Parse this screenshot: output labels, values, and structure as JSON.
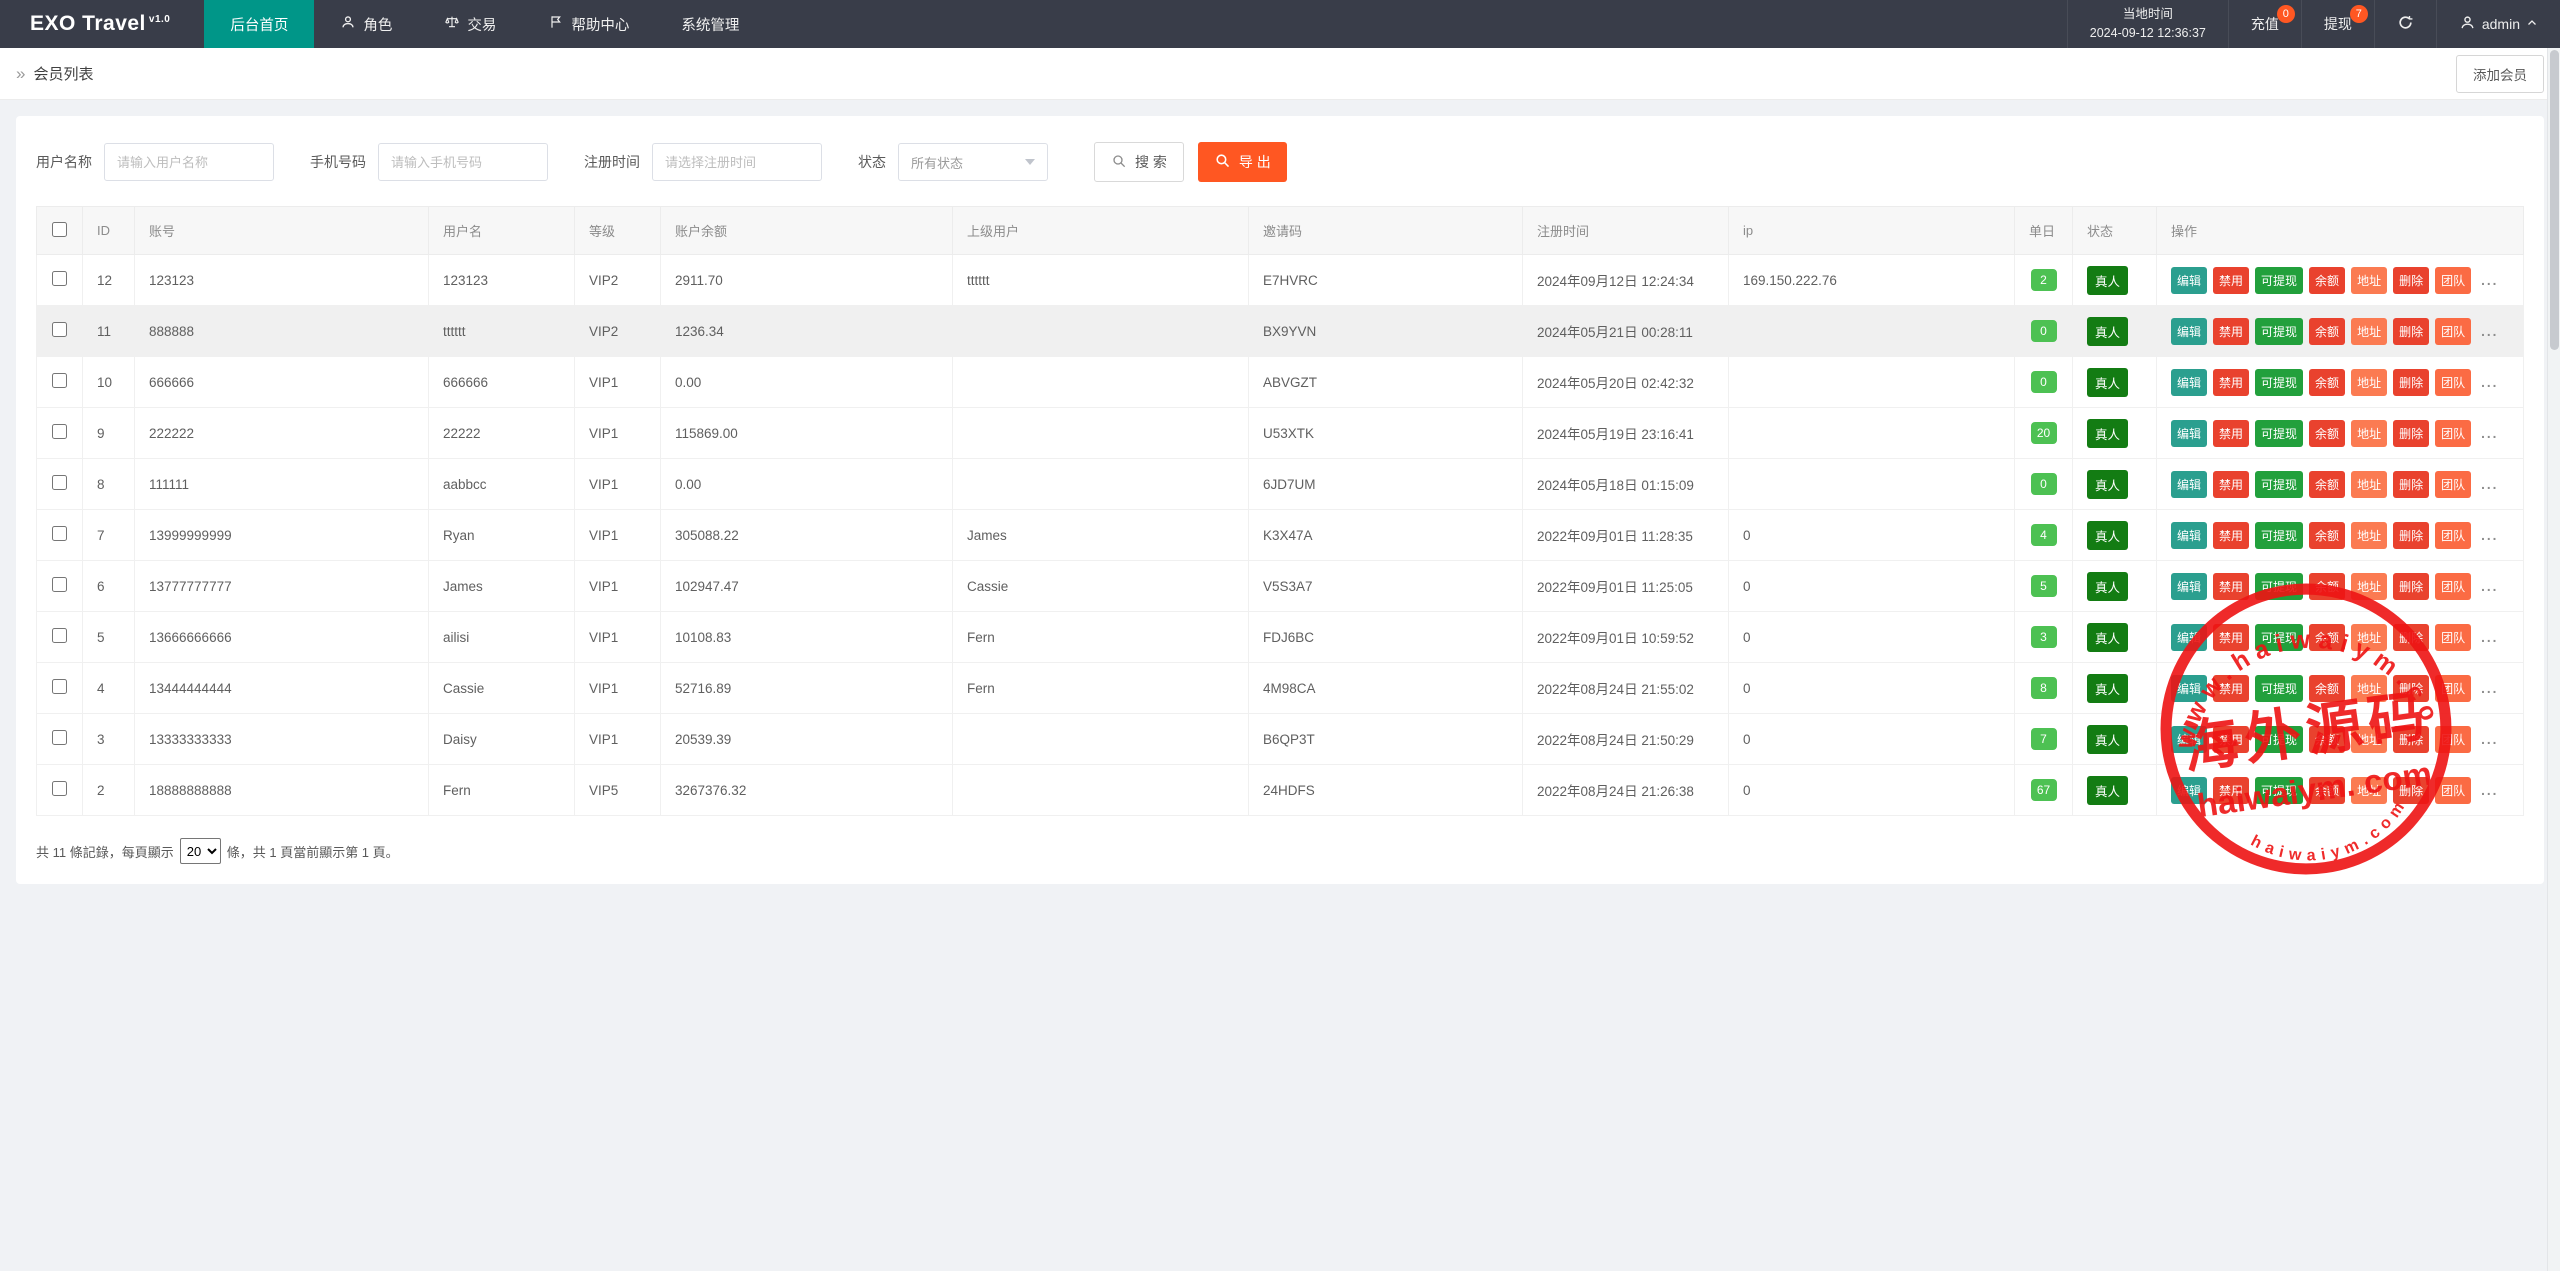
{
  "navbar": {
    "logo_text": "EXO Travel",
    "version": "v1.0",
    "menu": [
      {
        "label": "后台首页",
        "active": true
      },
      {
        "label": "角色",
        "icon": "user-icon"
      },
      {
        "label": "交易",
        "icon": "scales-icon"
      },
      {
        "label": "帮助中心",
        "icon": "flag-icon"
      },
      {
        "label": "系统管理"
      }
    ],
    "local_time_label": "当地时间",
    "local_time_value": "2024-09-12 12:36:37",
    "recharge": {
      "label": "充值",
      "badge": "0"
    },
    "withdraw": {
      "label": "提现",
      "badge": "7"
    },
    "username": "admin"
  },
  "breadcrumb": {
    "title": "会员列表"
  },
  "toolbar": {
    "add_member_label": "添加会员"
  },
  "filters": {
    "username": {
      "label": "用户名称",
      "placeholder": "请输入用户名称"
    },
    "phone": {
      "label": "手机号码",
      "placeholder": "请输入手机号码"
    },
    "reg_time": {
      "label": "注册时间",
      "placeholder": "请选择注册时间"
    },
    "status": {
      "label": "状态",
      "value": "所有状态"
    },
    "search_label": "搜 索",
    "export_label": "导 出"
  },
  "table": {
    "headers": [
      "ID",
      "账号",
      "用户名",
      "等级",
      "账户余额",
      "上级用户",
      "邀请码",
      "注册时间",
      "ip",
      "单日",
      "状态",
      "操作"
    ],
    "action_labels": [
      "编辑",
      "禁用",
      "可提现",
      "余额",
      "地址",
      "删除",
      "团队"
    ],
    "more_label": "...",
    "status_label": "真人",
    "rows": [
      {
        "id": "12",
        "account": "123123",
        "username": "123123",
        "level": "VIP2",
        "balance": "2911.70",
        "parent": "tttttt",
        "invite_code": "E7HVRC",
        "reg_time": "2024年09月12日 12:24:34",
        "ip": "169.150.222.76",
        "daily": "2"
      },
      {
        "id": "11",
        "account": "888888",
        "username": "tttttt",
        "level": "VIP2",
        "balance": "1236.34",
        "parent": "",
        "invite_code": "BX9YVN",
        "reg_time": "2024年05月21日 00:28:11",
        "ip": "",
        "daily": "0"
      },
      {
        "id": "10",
        "account": "666666",
        "username": "666666",
        "level": "VIP1",
        "balance": "0.00",
        "parent": "",
        "invite_code": "ABVGZT",
        "reg_time": "2024年05月20日 02:42:32",
        "ip": "",
        "daily": "0"
      },
      {
        "id": "9",
        "account": "222222",
        "username": "22222",
        "level": "VIP1",
        "balance": "115869.00",
        "parent": "",
        "invite_code": "U53XTK",
        "reg_time": "2024年05月19日 23:16:41",
        "ip": "",
        "daily": "20"
      },
      {
        "id": "8",
        "account": "111111",
        "username": "aabbcc",
        "level": "VIP1",
        "balance": "0.00",
        "parent": "",
        "invite_code": "6JD7UM",
        "reg_time": "2024年05月18日 01:15:09",
        "ip": "",
        "daily": "0"
      },
      {
        "id": "7",
        "account": "13999999999",
        "username": "Ryan",
        "level": "VIP1",
        "balance": "305088.22",
        "parent": "James",
        "invite_code": "K3X47A",
        "reg_time": "2022年09月01日 11:28:35",
        "ip": "0",
        "daily": "4"
      },
      {
        "id": "6",
        "account": "13777777777",
        "username": "James",
        "level": "VIP1",
        "balance": "102947.47",
        "parent": "Cassie",
        "invite_code": "V5S3A7",
        "reg_time": "2022年09月01日 11:25:05",
        "ip": "0",
        "daily": "5"
      },
      {
        "id": "5",
        "account": "13666666666",
        "username": "ailisi",
        "level": "VIP1",
        "balance": "10108.83",
        "parent": "Fern",
        "invite_code": "FDJ6BC",
        "reg_time": "2022年09月01日 10:59:52",
        "ip": "0",
        "daily": "3"
      },
      {
        "id": "4",
        "account": "13444444444",
        "username": "Cassie",
        "level": "VIP1",
        "balance": "52716.89",
        "parent": "Fern",
        "invite_code": "4M98CA",
        "reg_time": "2022年08月24日 21:55:02",
        "ip": "0",
        "daily": "8"
      },
      {
        "id": "3",
        "account": "13333333333",
        "username": "Daisy",
        "level": "VIP1",
        "balance": "20539.39",
        "parent": "",
        "invite_code": "B6QP3T",
        "reg_time": "2022年08月24日 21:50:29",
        "ip": "0",
        "daily": "7"
      },
      {
        "id": "2",
        "account": "18888888888",
        "username": "Fern",
        "level": "VIP5",
        "balance": "3267376.32",
        "parent": "",
        "invite_code": "24HDFS",
        "reg_time": "2022年08月24日 21:26:38",
        "ip": "0",
        "daily": "67"
      }
    ]
  },
  "pagination": {
    "prefix": "共 11 條記錄，每頁顯示",
    "page_size": "20",
    "suffix": "條，共 1 頁當前顯示第 1 頁。"
  },
  "watermark": {
    "arc_text": "www.haiwaiym.com",
    "line_cn": "海外源码",
    "line_domain": "haiwaiym. com",
    "arc_bottom": "haiwaiym.com"
  },
  "colors": {
    "navbar_bg": "#393d49",
    "active_menu": "#009688",
    "accent_orange": "#ff5722",
    "daily_badge_green": "#4dc153",
    "status_badge_green": "#137c13",
    "edit_teal": "#2b9f8f",
    "danger_red": "#e9422e",
    "withdraw_green": "#22a03c",
    "address_orange": "#fb7b52",
    "team_orange": "#fb6b44",
    "stamp_red": "#ee1414"
  }
}
